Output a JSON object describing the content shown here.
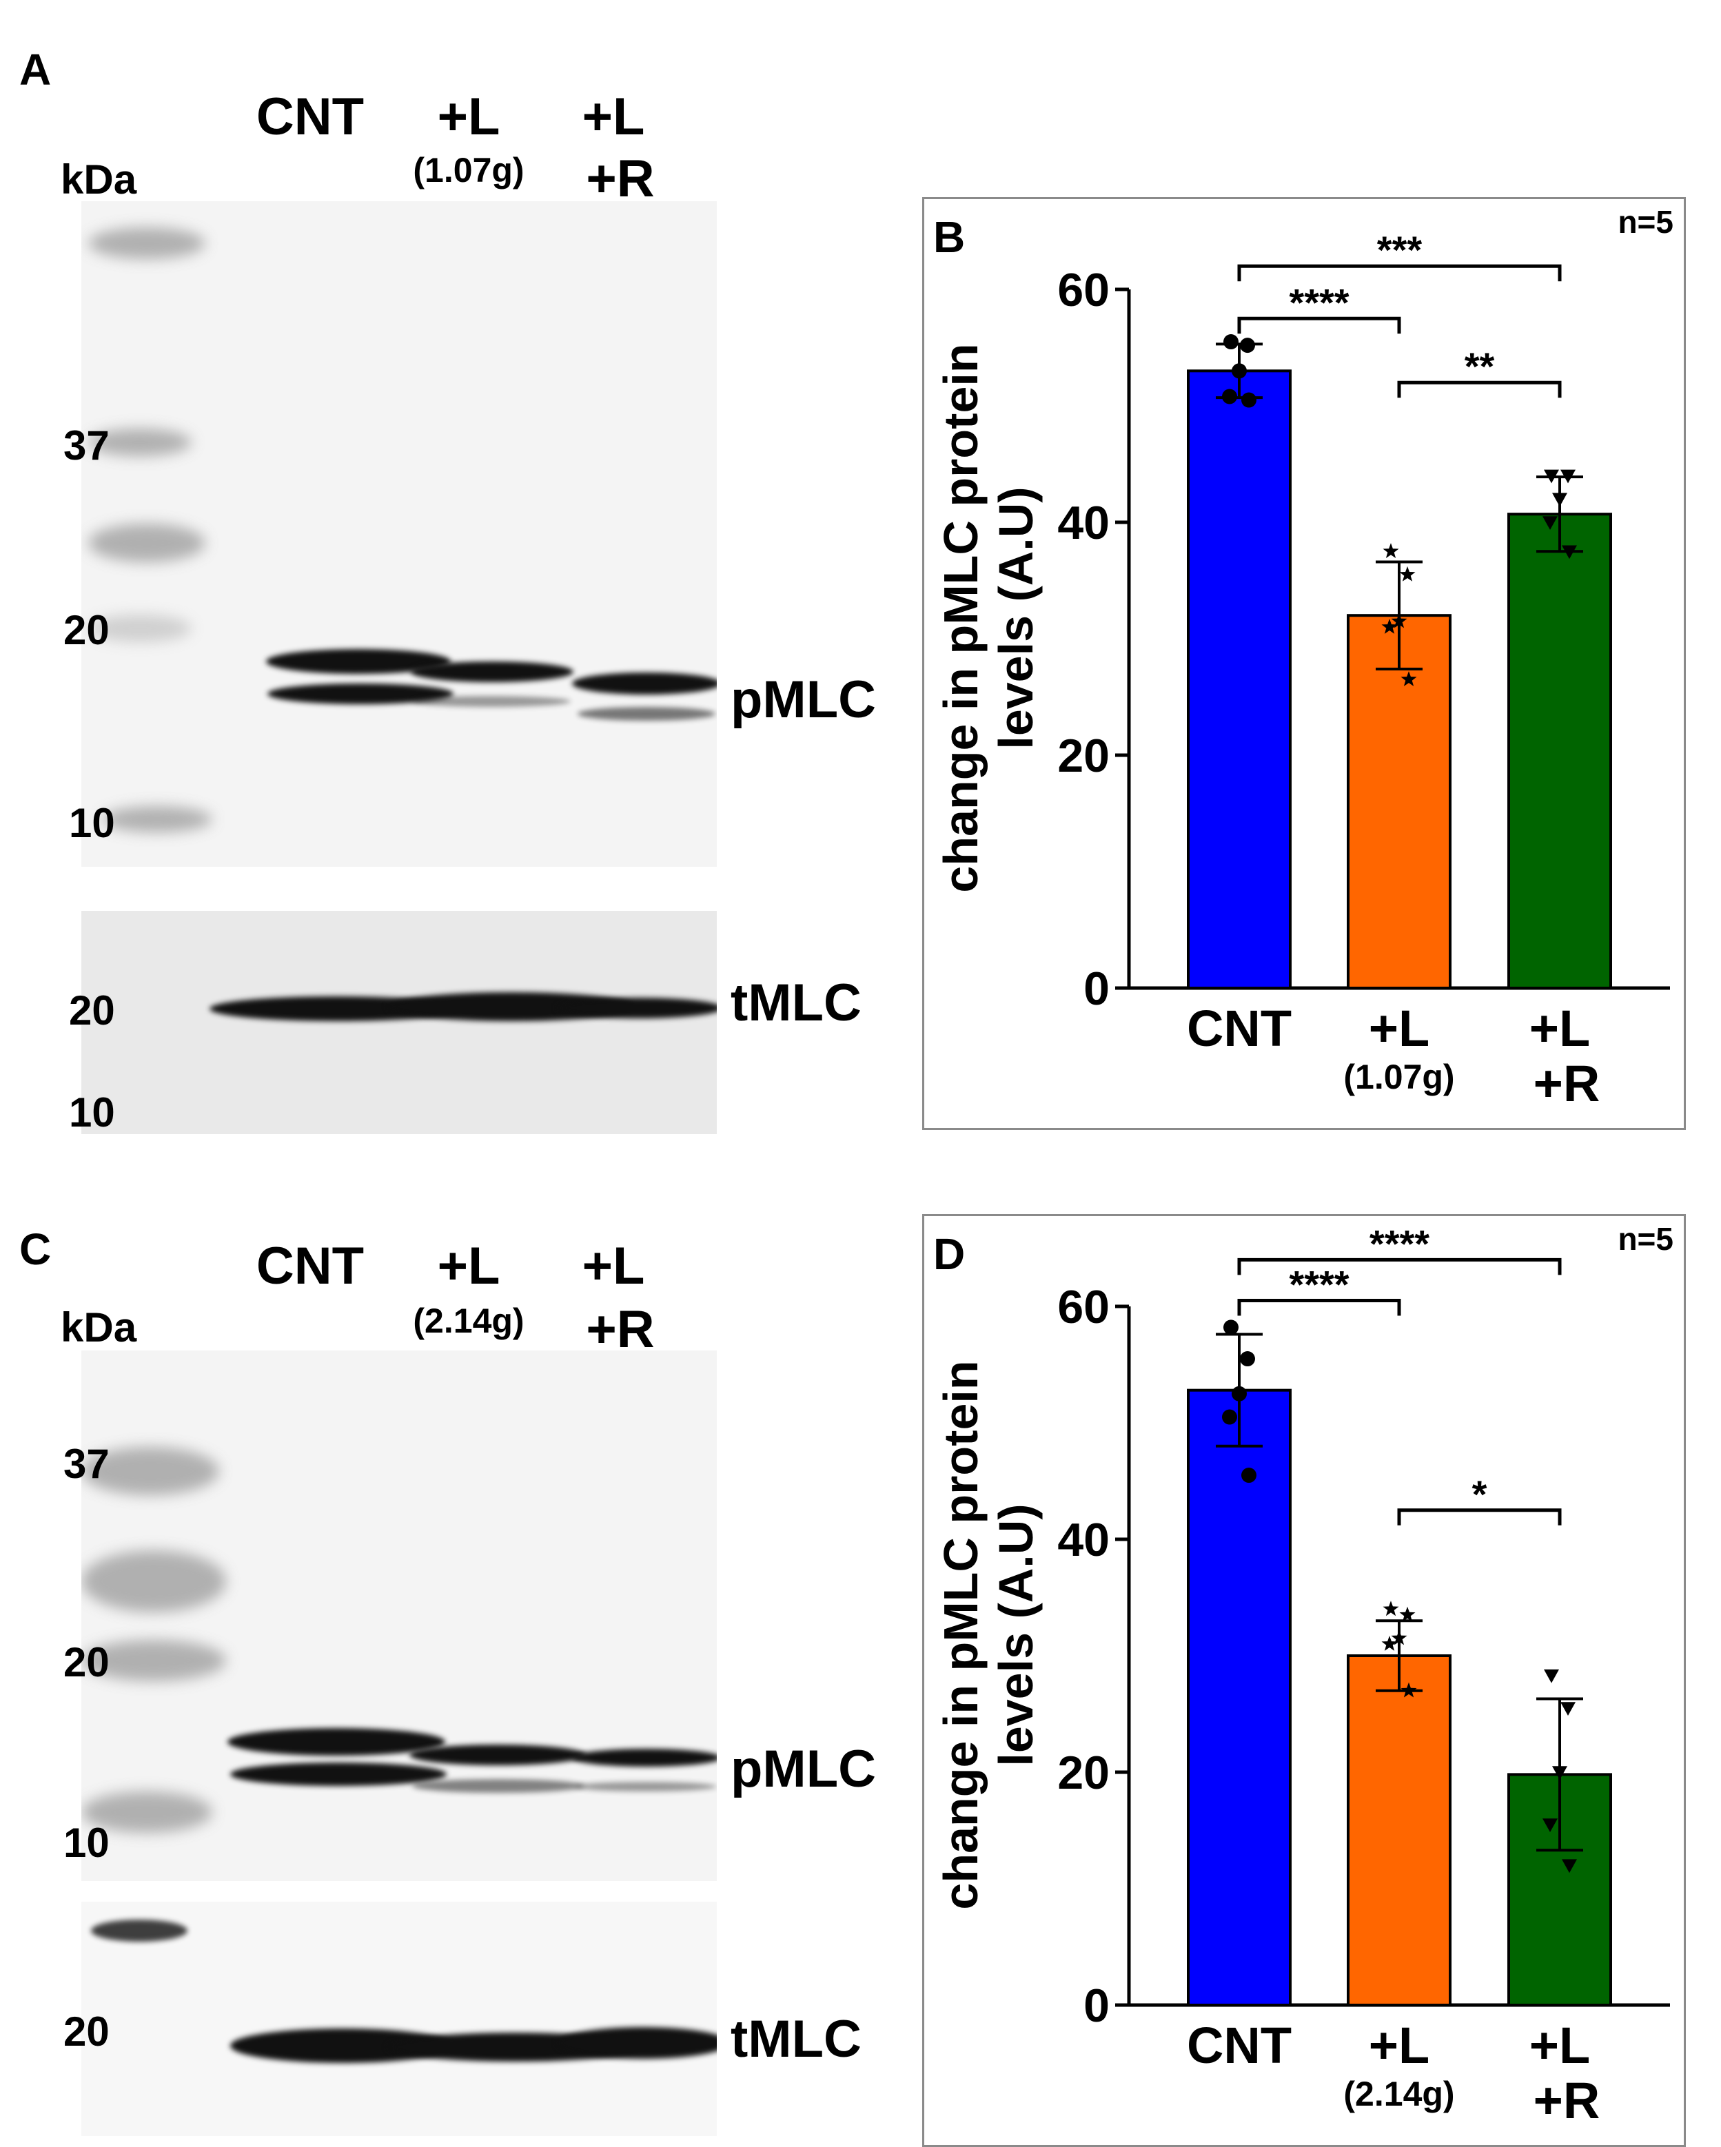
{
  "panel_a": {
    "letter": "A",
    "kda": "kDa",
    "lanes": [
      {
        "label": "CNT",
        "sub": ""
      },
      {
        "label": "+L",
        "sub": "(1.07g)"
      },
      {
        "label": "+L",
        "label2": "+R"
      }
    ],
    "markers_top": [
      "37",
      "20",
      "10"
    ],
    "markers_bottom": [
      "20",
      "10"
    ],
    "band_top": "pMLC",
    "band_bottom": "tMLC"
  },
  "panel_c": {
    "letter": "C",
    "kda": "kDa",
    "lanes": [
      {
        "label": "CNT",
        "sub": ""
      },
      {
        "label": "+L",
        "sub": "(2.14g)"
      },
      {
        "label": "+L",
        "label2": "+R"
      }
    ],
    "markers_top": [
      "37",
      "20",
      "10"
    ],
    "markers_bottom": [
      "20"
    ],
    "band_top": "pMLC",
    "band_bottom": "tMLC"
  },
  "chart_data": [
    {
      "panel": "B",
      "type": "bar",
      "n_label": "n=5",
      "ylabel": "change in pMLC protein levels (A.U)",
      "ylabel_line1": "change in pMLC protein",
      "ylabel_line2": "levels (A.U)",
      "ylim": [
        0,
        60
      ],
      "yticks": [
        "0",
        "20",
        "40",
        "60"
      ],
      "categories": [
        "CNT",
        "+L",
        "+L"
      ],
      "category_sub": [
        "",
        "(1.07g)",
        "+R"
      ],
      "values": [
        53,
        32,
        40.7
      ],
      "errors": [
        2.3,
        4.6,
        3.2
      ],
      "colors": [
        "#0000ff",
        "#ff6600",
        "#006400"
      ],
      "points": [
        [
          55.5,
          55.2,
          53,
          50.8,
          50.5
        ],
        [
          37.5,
          35.5,
          31.5,
          31,
          26.5
        ],
        [
          44,
          44,
          42,
          40,
          37.5
        ]
      ],
      "markers": [
        "circle",
        "star",
        "triangle-down"
      ],
      "significance": [
        {
          "from": 0,
          "to": 2,
          "label": "***",
          "level": 62
        },
        {
          "from": 0,
          "to": 1,
          "label": "****",
          "level": 57.5
        },
        {
          "from": 1,
          "to": 2,
          "label": "**",
          "level": 52
        }
      ]
    },
    {
      "panel": "D",
      "type": "bar",
      "n_label": "n=5",
      "ylabel": "change in pMLC protein levels (A.U)",
      "ylabel_line1": "change in pMLC protein",
      "ylabel_line2": "levels (A.U)",
      "ylim": [
        0,
        60
      ],
      "yticks": [
        "0",
        "20",
        "40",
        "60"
      ],
      "categories": [
        "CNT",
        "+L",
        "+L"
      ],
      "category_sub": [
        "",
        "(2.14g)",
        "+R"
      ],
      "values": [
        52.8,
        30,
        19.8
      ],
      "errors": [
        4.8,
        3,
        6.5
      ],
      "colors": [
        "#0000ff",
        "#ff6600",
        "#006400"
      ],
      "points": [
        [
          58.2,
          55.5,
          52.5,
          50.5,
          45.5
        ],
        [
          34,
          33.5,
          31.5,
          31,
          27
        ],
        [
          28.3,
          25.5,
          20,
          15.5,
          12
        ]
      ],
      "markers": [
        "circle",
        "star",
        "triangle-down"
      ],
      "significance": [
        {
          "from": 0,
          "to": 2,
          "label": "****",
          "level": 64
        },
        {
          "from": 0,
          "to": 1,
          "label": "****",
          "level": 60.5
        },
        {
          "from": 1,
          "to": 2,
          "label": "*",
          "level": 42.5
        }
      ]
    }
  ]
}
